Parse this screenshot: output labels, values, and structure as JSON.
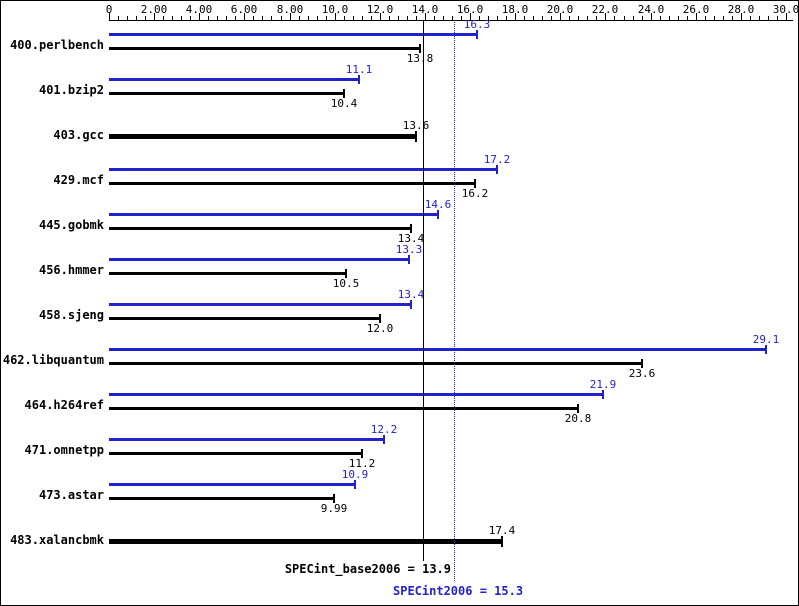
{
  "chart_data": {
    "type": "bar",
    "orientation": "horizontal",
    "title": "",
    "xlabel": "",
    "ylabel": "",
    "xlim": [
      0,
      30
    ],
    "grid": false,
    "legend": "none",
    "axis_ticks": [
      {
        "v": 0,
        "label": "0"
      },
      {
        "v": 2,
        "label": "2.00"
      },
      {
        "v": 4,
        "label": "4.00"
      },
      {
        "v": 6,
        "label": "6.00"
      },
      {
        "v": 8,
        "label": "8.00"
      },
      {
        "v": 10,
        "label": "10.0"
      },
      {
        "v": 12,
        "label": "12.0"
      },
      {
        "v": 14,
        "label": "14.0"
      },
      {
        "v": 16,
        "label": "16.0"
      },
      {
        "v": 18,
        "label": "18.0"
      },
      {
        "v": 20,
        "label": "20.0"
      },
      {
        "v": 22,
        "label": "22.0"
      },
      {
        "v": 24,
        "label": "24.0"
      },
      {
        "v": 26,
        "label": "26.0"
      },
      {
        "v": 28,
        "label": "28.0"
      },
      {
        "v": 30,
        "label": "30.0"
      }
    ],
    "minor_tick_step": 0.4,
    "series": [
      {
        "name": "peak",
        "color": "#2222cc"
      },
      {
        "name": "base",
        "color": "#000000"
      }
    ],
    "benchmarks": [
      {
        "name": "400.perlbench",
        "peak": 16.3,
        "peak_label": "16.3",
        "base": 13.8,
        "base_label": "13.8",
        "base_only": false
      },
      {
        "name": "401.bzip2",
        "peak": 11.1,
        "peak_label": "11.1",
        "base": 10.4,
        "base_label": "10.4",
        "base_only": false
      },
      {
        "name": "403.gcc",
        "base": 13.6,
        "base_label": "13.6",
        "base_only": true
      },
      {
        "name": "429.mcf",
        "peak": 17.2,
        "peak_label": "17.2",
        "base": 16.2,
        "base_label": "16.2",
        "base_only": false
      },
      {
        "name": "445.gobmk",
        "peak": 14.6,
        "peak_label": "14.6",
        "base": 13.4,
        "base_label": "13.4",
        "base_only": false
      },
      {
        "name": "456.hmmer",
        "peak": 13.3,
        "peak_label": "13.3",
        "base": 10.5,
        "base_label": "10.5",
        "base_only": false
      },
      {
        "name": "458.sjeng",
        "peak": 13.4,
        "peak_label": "13.4",
        "base": 12.0,
        "base_label": "12.0",
        "base_only": false
      },
      {
        "name": "462.libquantum",
        "peak": 29.1,
        "peak_label": "29.1",
        "base": 23.6,
        "base_label": "23.6",
        "base_only": false
      },
      {
        "name": "464.h264ref",
        "peak": 21.9,
        "peak_label": "21.9",
        "base": 20.8,
        "base_label": "20.8",
        "base_only": false
      },
      {
        "name": "471.omnetpp",
        "peak": 12.2,
        "peak_label": "12.2",
        "base": 11.2,
        "base_label": "11.2",
        "base_only": false
      },
      {
        "name": "473.astar",
        "peak": 10.9,
        "peak_label": "10.9",
        "base": 9.99,
        "base_label": "9.99",
        "base_only": false
      },
      {
        "name": "483.xalancbmk",
        "base": 17.4,
        "base_label": "17.4",
        "base_only": true
      }
    ],
    "reference_lines": [
      {
        "name": "SPECint_base2006",
        "value": 13.9,
        "style": "solid",
        "color": "#000000"
      },
      {
        "name": "SPECint2006",
        "value": 15.3,
        "style": "dotted",
        "color": "#2222cc"
      }
    ],
    "summary": {
      "base_label": "SPECint_base2006 = 13.9",
      "base_value": 13.9,
      "peak_label": "SPECint2006 = 15.3",
      "peak_value": 15.3
    },
    "colors": {
      "peak": "#2222cc",
      "base": "#000000",
      "background": "#ffffff"
    }
  }
}
